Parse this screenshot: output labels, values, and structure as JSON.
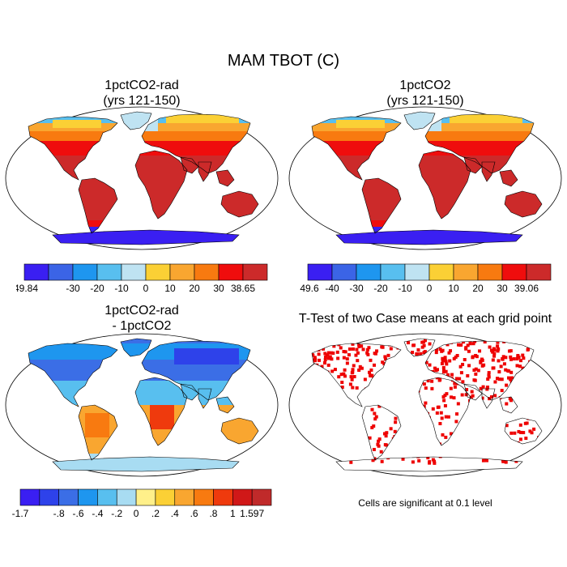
{
  "title": "MAM TBOT (C)",
  "panels": [
    {
      "id": "p1",
      "title_line1": "1pctCO2-rad",
      "title_line2": "(yrs 121-150)"
    },
    {
      "id": "p2",
      "title_line1": "1pctCO2",
      "title_line2": "(yrs 121-150)"
    },
    {
      "id": "p3",
      "title_line1": "1pctCO2-rad",
      "title_line2": "- 1pctCO2"
    },
    {
      "id": "p4",
      "title_line1": "T-Test of two Case means at each grid point",
      "title_line2": ""
    }
  ],
  "colorbars": [
    {
      "id": "cb1",
      "colors": [
        "#3a1ff2",
        "#3b64e6",
        "#1e96ef",
        "#58bfef",
        "#bfe3f2",
        "#fbd035",
        "#f9a630",
        "#f87a10",
        "#ef0d0d",
        "#cc2a2a"
      ],
      "labels": [
        "-49.84",
        "",
        "-30",
        "-20",
        "-10",
        "0",
        "10",
        "20",
        "30",
        "38.65"
      ]
    },
    {
      "id": "cb2",
      "colors": [
        "#3a1ff2",
        "#3b64e6",
        "#1e96ef",
        "#58bfef",
        "#bfe3f2",
        "#fbd035",
        "#f9a630",
        "#f87a10",
        "#ef0d0d",
        "#cc2a2a"
      ],
      "labels": [
        "-49.6",
        "-40",
        "-30",
        "-20",
        "-10",
        "0",
        "10",
        "20",
        "30",
        "39.06"
      ]
    },
    {
      "id": "cb3",
      "colors": [
        "#3a1ff2",
        "#2e42ea",
        "#3b6ee6",
        "#1e96ef",
        "#58bfef",
        "#a8dcf2",
        "#fff08a",
        "#fbd035",
        "#f9a630",
        "#f87a10",
        "#ef3a0d",
        "#d01818",
        "#c02a2a"
      ],
      "labels": [
        "-1.7",
        "",
        "-.8",
        "-.6",
        "-.4",
        "-.2",
        "0",
        ".2",
        ".4",
        ".6",
        ".8",
        "1",
        "1.597"
      ]
    }
  ],
  "significance_note": "Cells are significant at 0.1 level",
  "colors": {
    "ocean": "#ffffff",
    "land_outline": "#000000",
    "significant": "#ee0000",
    "antarctica_cold": "#3a1ff2"
  }
}
